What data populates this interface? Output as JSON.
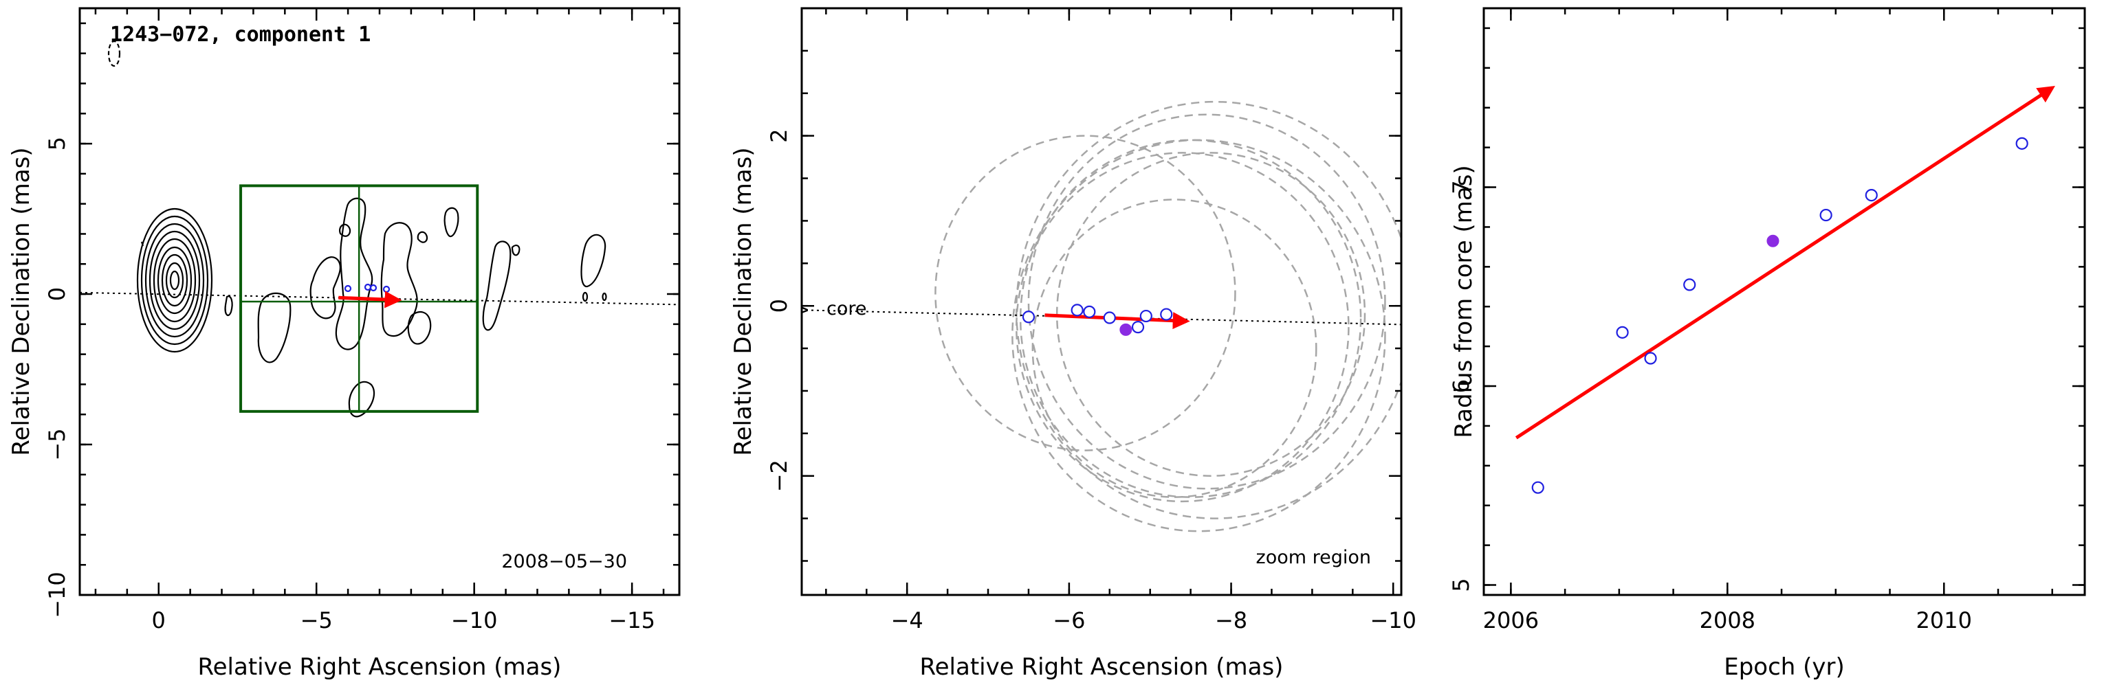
{
  "colors": {
    "zoom_box": "#0a5c0a",
    "vector": "#ff0000",
    "open_point": "#2020e0",
    "filled_point": "#8a2be2",
    "circle": "#a6a6a6"
  },
  "panel1": {
    "title": "1243−072, component 1",
    "date": "2008−05−30"
  },
  "panel2": {
    "core_label": "core",
    "zoom_label": "zoom region"
  },
  "chart_data": [
    {
      "type": "contour",
      "title": "1243−072, component 1",
      "xlabel": "Relative Right Ascension (mas)",
      "ylabel": "Relative Declination (mas)",
      "xlim": [
        2.5,
        -16.5
      ],
      "ylim": [
        -10,
        9.5
      ],
      "xticks": [
        "0",
        "−5",
        "−10",
        "−15"
      ],
      "yticks": [
        "−10",
        "−5",
        "0",
        "5"
      ],
      "annotation": "2008−05−30",
      "zoom_box": {
        "x": [
          -2.6,
          -10.1
        ],
        "y": [
          -3.9,
          3.6
        ]
      },
      "ridge_line": {
        "x": [
          2.5,
          -16.5
        ],
        "y": [
          0.05,
          -0.35
        ]
      },
      "velocity_vector": {
        "x": [
          -5.7,
          -7.6
        ],
        "y": [
          -0.12,
          -0.2
        ]
      }
    },
    {
      "type": "scatter",
      "xlabel": "Relative Right Ascension (mas)",
      "ylabel": "Relative Declination (mas)",
      "xlim": [
        -2.7,
        -10.1
      ],
      "ylim": [
        -3.4,
        3.5
      ],
      "xticks": [
        "−4",
        "−6",
        "−8",
        "−10"
      ],
      "yticks": [
        "−2",
        "0",
        "2"
      ],
      "annotation": "zoom region",
      "core_label": "core",
      "points_open": {
        "x": [
          -5.5,
          -6.1,
          -6.25,
          -6.5,
          -6.85,
          -6.95,
          -7.2
        ],
        "y": [
          -0.13,
          -0.05,
          -0.07,
          -0.14,
          -0.25,
          -0.12,
          -0.1
        ]
      },
      "points_filled": {
        "x": [
          -6.7
        ],
        "y": [
          -0.28
        ]
      },
      "velocity_vector": {
        "x": [
          -5.7,
          -7.45
        ],
        "y": [
          -0.11,
          -0.18
        ]
      },
      "ridge_line": {
        "x": [
          -2.7,
          -10.1
        ],
        "y": [
          -0.05,
          -0.22
        ]
      },
      "error_circles": [
        {
          "cx": -6.2,
          "cy": 0.15,
          "r": 1.85
        },
        {
          "cx": -7.4,
          "cy": -0.25,
          "r": 2.05
        },
        {
          "cx": -7.5,
          "cy": -0.15,
          "r": 2.1
        },
        {
          "cx": -7.6,
          "cy": -0.35,
          "r": 2.3
        },
        {
          "cx": -7.7,
          "cy": 0.05,
          "r": 2.2
        },
        {
          "cx": -7.75,
          "cy": -0.1,
          "r": 1.9
        },
        {
          "cx": -7.8,
          "cy": -0.05,
          "r": 2.45
        },
        {
          "cx": -7.3,
          "cy": -0.5,
          "r": 1.75
        }
      ]
    },
    {
      "type": "scatter",
      "xlabel": "Epoch (yr)",
      "ylabel": "Radius from core (mas)",
      "xlim": [
        2005.75,
        2011.3
      ],
      "ylim": [
        4.95,
        7.9
      ],
      "xticks": [
        "2006",
        "2008",
        "2010"
      ],
      "yticks": [
        "5",
        "6",
        "7"
      ],
      "points_open": {
        "x": [
          2006.25,
          2007.03,
          2007.29,
          2007.65,
          2008.91,
          2009.33,
          2010.72
        ],
        "y": [
          5.49,
          6.27,
          6.14,
          6.51,
          6.86,
          6.96,
          7.22
        ]
      },
      "points_filled": {
        "x": [
          2008.42
        ],
        "y": [
          6.73
        ]
      },
      "fit_line": {
        "x": [
          2006.05,
          2011.0
        ],
        "y": [
          5.74,
          7.5
        ]
      }
    }
  ]
}
